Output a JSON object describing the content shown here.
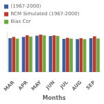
{
  "chart_data": {
    "type": "bar",
    "xlabel": "Months",
    "categories": [
      "MAR",
      "APR",
      "MAY",
      "JUN",
      "JUL",
      "AUG",
      "SEP"
    ],
    "series": [
      {
        "name": "(1967-2000)",
        "color": "#3a5fa0",
        "values": [
          26.5,
          27.5,
          28.5,
          28.2,
          26.0,
          25.8,
          26.5
        ]
      },
      {
        "name": "RCM Simulated (1967-2000)",
        "color": "#c0392b",
        "values": [
          27.5,
          28.8,
          29.3,
          28.7,
          26.8,
          26.5,
          28.0
        ]
      },
      {
        "name": "Bias Cor",
        "color": "#6aaa3f",
        "values": [
          26.2,
          27.8,
          28.7,
          28.3,
          26.2,
          25.8,
          26.3
        ]
      }
    ],
    "ylim": [
      0,
      32
    ],
    "tick_labels": "x",
    "grid": false,
    "legend": "upper left"
  }
}
